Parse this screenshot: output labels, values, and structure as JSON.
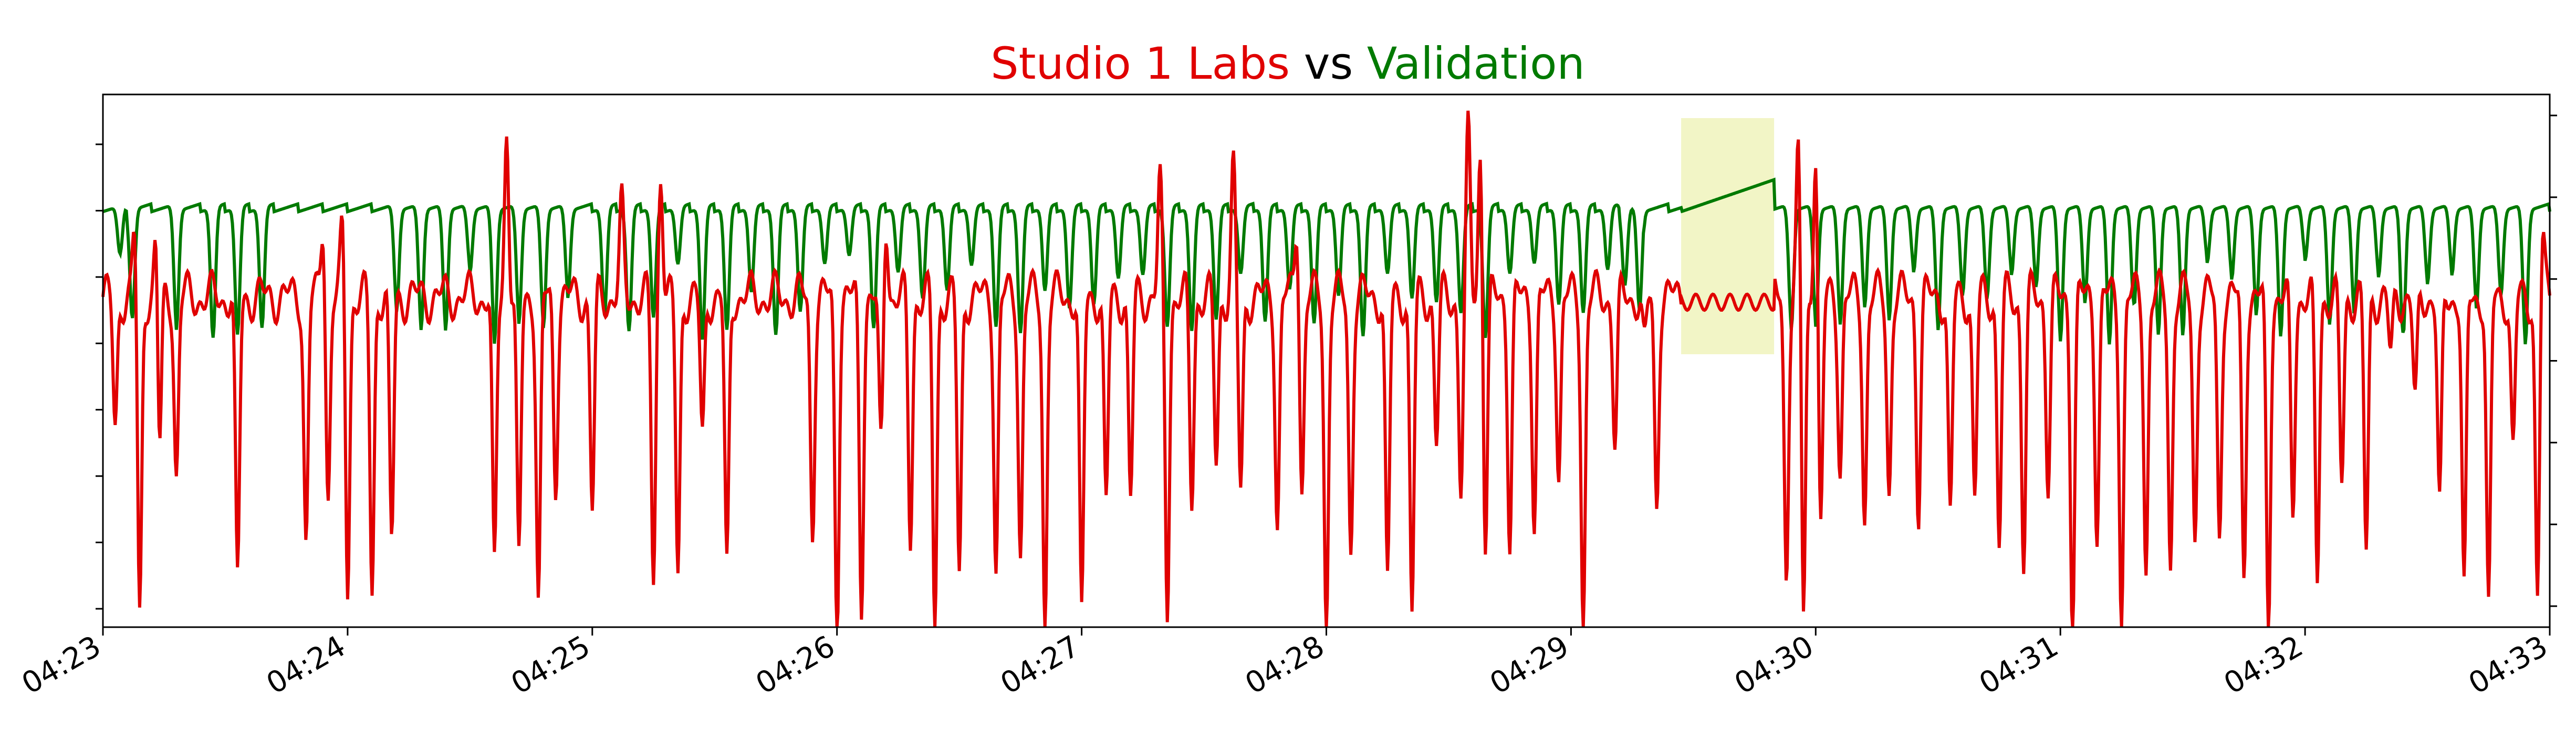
{
  "chart_data": {
    "type": "line",
    "title": {
      "part1": "Studio 1 Labs",
      "part2": " vs ",
      "part3": "Validation",
      "part1_color": "#e00000",
      "part2_color": "#000000",
      "part3_color": "#007a00"
    },
    "xlabel": "",
    "ylabel": "",
    "x_tick_labels": [
      "04:23",
      "04:24",
      "04:25",
      "04:26",
      "04:27",
      "04:28",
      "04:29",
      "04:30",
      "04:31",
      "04:32",
      "04:33"
    ],
    "xlim_minutes": [
      0,
      10
    ],
    "left_axis_tick_count": 8,
    "right_axis_tick_count": 7,
    "y_tick_labels_shown": false,
    "grid": false,
    "highlight_region": {
      "x_start_minutes": 6.45,
      "x_end_minutes": 6.83,
      "color": "#f2f5c6"
    },
    "series": [
      {
        "name": "Studio 1 Labs",
        "color": "#e00000",
        "axis": "left",
        "baseline": 0.62,
        "dip_minutes": [
          0.05,
          0.15,
          0.23,
          0.3,
          0.55,
          0.83,
          0.92,
          1.0,
          1.1,
          1.18,
          1.6,
          1.7,
          1.78,
          1.85,
          2.0,
          2.25,
          2.35,
          2.45,
          2.55,
          2.9,
          3.0,
          3.1,
          3.18,
          3.3,
          3.4,
          3.5,
          3.65,
          3.75,
          3.85,
          4.0,
          4.1,
          4.2,
          4.35,
          4.45,
          4.55,
          4.65,
          4.8,
          4.9,
          5.0,
          5.1,
          5.25,
          5.35,
          5.45,
          5.55,
          5.65,
          5.75,
          5.85,
          5.95,
          6.05,
          6.18,
          6.3,
          6.35,
          6.88,
          6.95,
          7.02,
          7.1,
          7.2,
          7.3,
          7.42,
          7.55,
          7.65,
          7.75,
          7.85,
          7.95,
          8.05,
          8.15,
          8.25,
          8.35,
          8.45,
          8.55,
          8.65,
          8.75,
          8.85,
          8.95,
          9.05,
          9.15,
          9.25,
          9.35,
          9.45,
          9.55,
          9.65,
          9.75,
          9.85,
          9.95
        ],
        "peak_minutes": [
          0.13,
          0.22,
          0.9,
          0.98,
          1.65,
          2.12,
          2.28,
          3.2,
          4.32,
          4.62,
          4.88,
          5.58,
          5.63,
          6.3,
          6.93,
          7.0,
          9.35,
          9.45,
          9.97
        ]
      },
      {
        "name": "Validation",
        "color": "#007a00",
        "axis": "right",
        "baseline": 0.8,
        "dip_minutes": [
          0.07,
          0.12,
          0.3,
          0.45,
          0.55,
          0.65,
          1.2,
          1.3,
          1.4,
          1.5,
          1.6,
          1.7,
          1.8,
          1.9,
          2.05,
          2.15,
          2.25,
          2.35,
          2.45,
          2.55,
          2.65,
          2.75,
          2.85,
          2.95,
          3.05,
          3.15,
          3.25,
          3.35,
          3.45,
          3.55,
          3.65,
          3.75,
          3.85,
          3.95,
          4.05,
          4.15,
          4.25,
          4.35,
          4.45,
          4.55,
          4.65,
          4.75,
          4.85,
          4.95,
          5.05,
          5.15,
          5.25,
          5.35,
          5.45,
          5.55,
          5.65,
          5.75,
          5.85,
          5.95,
          6.05,
          6.15,
          6.22,
          6.28,
          6.9,
          7.0,
          7.1,
          7.2,
          7.3,
          7.4,
          7.5,
          7.6,
          7.7,
          7.8,
          7.9,
          8.0,
          8.1,
          8.2,
          8.3,
          8.4,
          8.5,
          8.6,
          8.7,
          8.8,
          8.9,
          9.0,
          9.1,
          9.2,
          9.3,
          9.4,
          9.5,
          9.6,
          9.7,
          9.8,
          9.9
        ]
      }
    ]
  }
}
